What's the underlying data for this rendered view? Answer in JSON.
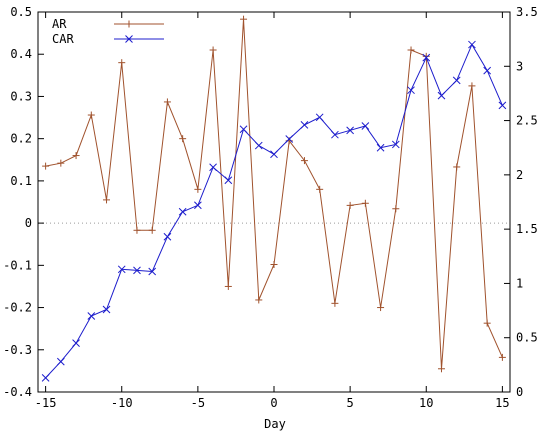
{
  "chart_data": {
    "type": "line",
    "title": "",
    "xlabel": "Day",
    "ylabel_left": "",
    "ylabel_right": "",
    "x": [
      -15,
      -14,
      -13,
      -12,
      -11,
      -10,
      -9,
      -8,
      -7,
      -6,
      -5,
      -4,
      -3,
      -2,
      -1,
      0,
      1,
      2,
      3,
      4,
      5,
      6,
      7,
      8,
      9,
      10,
      11,
      12,
      13,
      14,
      15
    ],
    "xlim": [
      -15.5,
      15.5
    ],
    "xticks": [
      -15,
      -10,
      -5,
      0,
      5,
      10,
      15
    ],
    "ylim_left": [
      -0.4,
      0.5
    ],
    "yticks_left": [
      -0.4,
      -0.3,
      -0.2,
      -0.1,
      0,
      0.1,
      0.2,
      0.3,
      0.4,
      0.5
    ],
    "ylim_right": [
      0,
      3.5
    ],
    "yticks_right": [
      0,
      0.5,
      1,
      1.5,
      2,
      2.5,
      3,
      3.5
    ],
    "zero_line": true,
    "grid": false,
    "legend_position": "top-left",
    "series": [
      {
        "name": "AR",
        "axis": "left",
        "color": "#a0522d",
        "marker": "plus",
        "values": [
          0.135,
          0.142,
          0.16,
          0.256,
          0.055,
          0.38,
          -0.017,
          -0.017,
          0.287,
          0.2,
          0.08,
          0.41,
          -0.15,
          0.483,
          -0.182,
          -0.098,
          0.195,
          0.148,
          0.08,
          -0.19,
          0.042,
          0.047,
          -0.2,
          0.034,
          0.41,
          0.395,
          -0.345,
          0.133,
          0.325,
          -0.237,
          -0.318
        ]
      },
      {
        "name": "CAR",
        "axis": "right",
        "color": "#1c1ccc",
        "marker": "cross",
        "values": [
          0.13,
          0.28,
          0.45,
          0.7,
          0.76,
          1.13,
          1.12,
          1.11,
          1.43,
          1.66,
          1.72,
          2.07,
          1.95,
          2.42,
          2.27,
          2.19,
          2.33,
          2.46,
          2.53,
          2.37,
          2.41,
          2.45,
          2.25,
          2.28,
          2.78,
          3.08,
          2.73,
          2.87,
          3.2,
          2.96,
          2.64
        ]
      }
    ]
  }
}
